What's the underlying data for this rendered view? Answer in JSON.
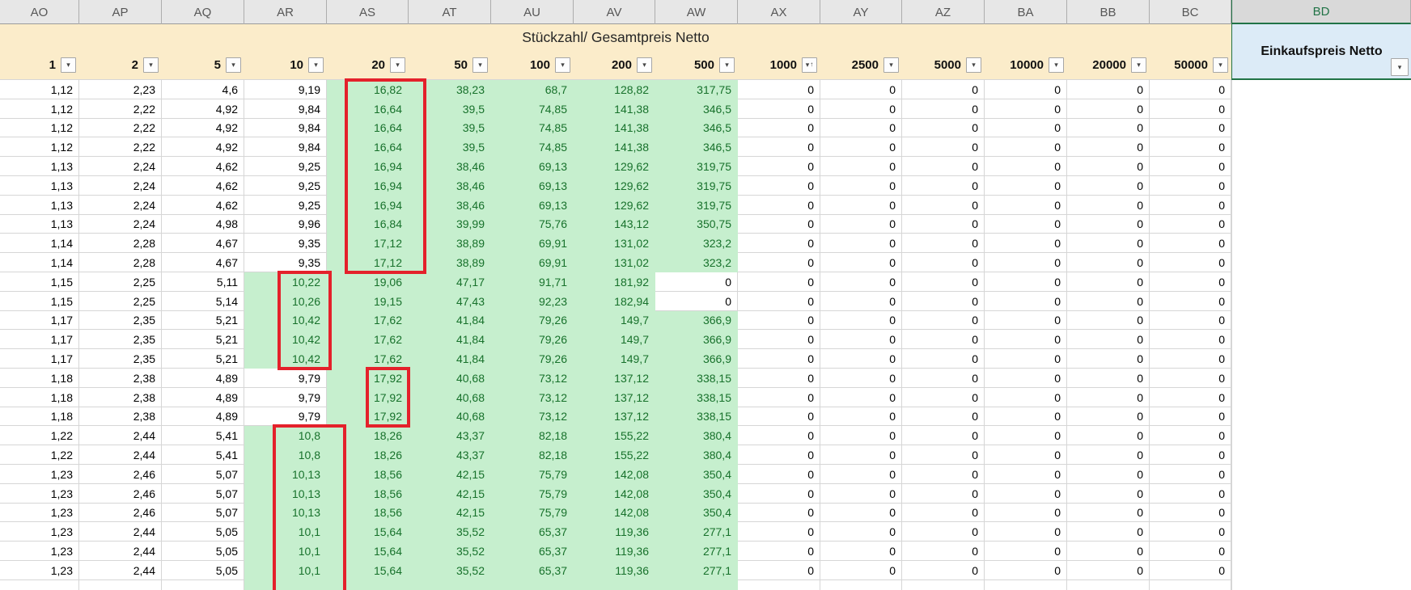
{
  "sheet": {
    "title": "Stückzahl/ Gesamtpreis Netto",
    "columns": [
      "AO",
      "AP",
      "AQ",
      "AR",
      "AS",
      "AT",
      "AU",
      "AV",
      "AW",
      "AX",
      "AY",
      "AZ",
      "BA",
      "BB",
      "BC",
      "BD"
    ],
    "selected_column": "BD",
    "bd_header": "Einkaufspreis Netto",
    "filters": [
      {
        "label": "1"
      },
      {
        "label": "2"
      },
      {
        "label": "5"
      },
      {
        "label": "10"
      },
      {
        "label": "20"
      },
      {
        "label": "50"
      },
      {
        "label": "100"
      },
      {
        "label": "200"
      },
      {
        "label": "500"
      },
      {
        "label": "1000",
        "sorted_ascending": true
      },
      {
        "label": "2500"
      },
      {
        "label": "5000"
      },
      {
        "label": "10000"
      },
      {
        "label": "20000"
      },
      {
        "label": "50000"
      }
    ],
    "icons": {
      "dropdown": "▾",
      "sort_ascending": "↑"
    },
    "colors": {
      "green_fill": "#c6efce",
      "green_text": "#17712b",
      "cream": "#fbecca",
      "blue_header": "#dcebf7",
      "red_annotation": "#e4212b",
      "selection_green": "#217346"
    },
    "rows": [
      {
        "repeat": 1,
        "green": "AS-AW",
        "values": [
          "1,12",
          "2,23",
          "4,6",
          "9,19",
          "16,82",
          "38,23",
          "68,7",
          "128,82",
          "317,75",
          "0",
          "0",
          "0",
          "0",
          "0",
          "0"
        ]
      },
      {
        "repeat": 3,
        "green": "AS-AW",
        "values": [
          "1,12",
          "2,22",
          "4,92",
          "9,84",
          "16,64",
          "39,5",
          "74,85",
          "141,38",
          "346,5",
          "0",
          "0",
          "0",
          "0",
          "0",
          "0"
        ]
      },
      {
        "repeat": 3,
        "green": "AS-AW",
        "values": [
          "1,13",
          "2,24",
          "4,62",
          "9,25",
          "16,94",
          "38,46",
          "69,13",
          "129,62",
          "319,75",
          "0",
          "0",
          "0",
          "0",
          "0",
          "0"
        ]
      },
      {
        "repeat": 1,
        "green": "AS-AW",
        "values": [
          "1,13",
          "2,24",
          "4,98",
          "9,96",
          "16,84",
          "39,99",
          "75,76",
          "143,12",
          "350,75",
          "0",
          "0",
          "0",
          "0",
          "0",
          "0"
        ]
      },
      {
        "repeat": 2,
        "green": "AS-AW",
        "values": [
          "1,14",
          "2,28",
          "4,67",
          "9,35",
          "17,12",
          "38,89",
          "69,91",
          "131,02",
          "323,2",
          "0",
          "0",
          "0",
          "0",
          "0",
          "0"
        ]
      },
      {
        "repeat": 1,
        "green": "AR-AV",
        "values": [
          "1,15",
          "2,25",
          "5,11",
          "10,22",
          "19,06",
          "47,17",
          "91,71",
          "181,92",
          "0",
          "0",
          "0",
          "0",
          "0",
          "0",
          "0"
        ]
      },
      {
        "repeat": 1,
        "green": "AR-AV",
        "values": [
          "1,15",
          "2,25",
          "5,14",
          "10,26",
          "19,15",
          "47,43",
          "92,23",
          "182,94",
          "0",
          "0",
          "0",
          "0",
          "0",
          "0",
          "0"
        ]
      },
      {
        "repeat": 3,
        "green": "AR-AW",
        "values": [
          "1,17",
          "2,35",
          "5,21",
          "10,42",
          "17,62",
          "41,84",
          "79,26",
          "149,7",
          "366,9",
          "0",
          "0",
          "0",
          "0",
          "0",
          "0"
        ]
      },
      {
        "repeat": 3,
        "green": "AS-AW",
        "values": [
          "1,18",
          "2,38",
          "4,89",
          "9,79",
          "17,92",
          "40,68",
          "73,12",
          "137,12",
          "338,15",
          "0",
          "0",
          "0",
          "0",
          "0",
          "0"
        ]
      },
      {
        "repeat": 2,
        "green": "AR-AW",
        "values": [
          "1,22",
          "2,44",
          "5,41",
          "10,8",
          "18,26",
          "43,37",
          "82,18",
          "155,22",
          "380,4",
          "0",
          "0",
          "0",
          "0",
          "0",
          "0"
        ]
      },
      {
        "repeat": 3,
        "green": "AR-AW",
        "values": [
          "1,23",
          "2,46",
          "5,07",
          "10,13",
          "18,56",
          "42,15",
          "75,79",
          "142,08",
          "350,4",
          "0",
          "0",
          "0",
          "0",
          "0",
          "0"
        ]
      },
      {
        "repeat": 3,
        "green": "AR-AW",
        "values": [
          "1,23",
          "2,44",
          "5,05",
          "10,1",
          "15,64",
          "35,52",
          "65,37",
          "119,36",
          "277,1",
          "0",
          "0",
          "0",
          "0",
          "0",
          "0"
        ]
      }
    ],
    "partial_bottom_row": {
      "green": "AR-AW"
    },
    "red_boxes": [
      {
        "column": "AS",
        "from_row": 1,
        "to_row": 10,
        "open_bottom": false
      },
      {
        "column": "AR",
        "from_row": 11,
        "to_row": 15,
        "open_bottom": false
      },
      {
        "column": "AS",
        "from_row": 16,
        "to_row": 18,
        "open_bottom": false
      },
      {
        "column": "AR",
        "from_row": 19,
        "to_row": 27,
        "open_bottom": true
      }
    ]
  }
}
